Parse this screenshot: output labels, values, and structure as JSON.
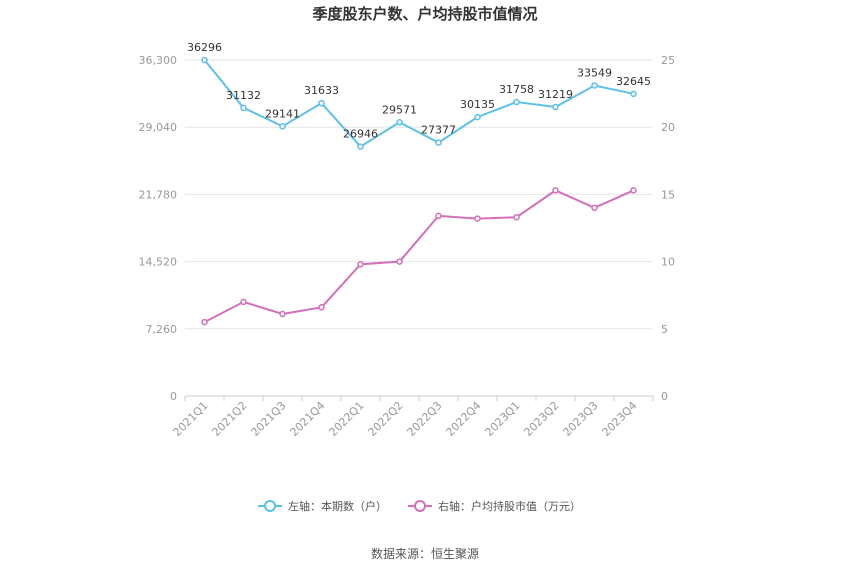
{
  "chart_data": {
    "type": "line",
    "title": "季度股东户数、户均持股市值情况",
    "categories": [
      "2021Q1",
      "2021Q2",
      "2021Q3",
      "2021Q4",
      "2022Q1",
      "2022Q2",
      "2022Q3",
      "2022Q4",
      "2023Q1",
      "2023Q2",
      "2023Q3",
      "2023Q4"
    ],
    "left_axis": {
      "min": 0,
      "max": 36300,
      "ticks": [
        "0",
        "7,260",
        "14,520",
        "21,780",
        "29,040",
        "36,300"
      ]
    },
    "right_axis": {
      "min": 0,
      "max": 25,
      "ticks": [
        "0",
        "5",
        "10",
        "15",
        "20",
        "25"
      ]
    },
    "series": [
      {
        "name": "左轴：本期数（户）",
        "axis": "left",
        "color": "#5bc0ea",
        "values": [
          36296,
          31132,
          29141,
          31633,
          26946,
          29571,
          27377,
          30135,
          31758,
          31219,
          33549,
          32645
        ],
        "labels": [
          "36296",
          "31132",
          "29141",
          "31633",
          "26946",
          "29571",
          "27377",
          "30135",
          "31758",
          "31219",
          "33549",
          "32645"
        ]
      },
      {
        "name": "右轴：户均持股市值（万元）",
        "axis": "right",
        "color": "#d36fb8",
        "values": [
          5.5,
          7.0,
          6.1,
          6.6,
          9.8,
          10.0,
          13.4,
          13.2,
          13.3,
          15.3,
          14.0,
          15.3
        ]
      }
    ],
    "grid": true,
    "legend_position": "bottom"
  },
  "source": "数据来源：恒生聚源"
}
